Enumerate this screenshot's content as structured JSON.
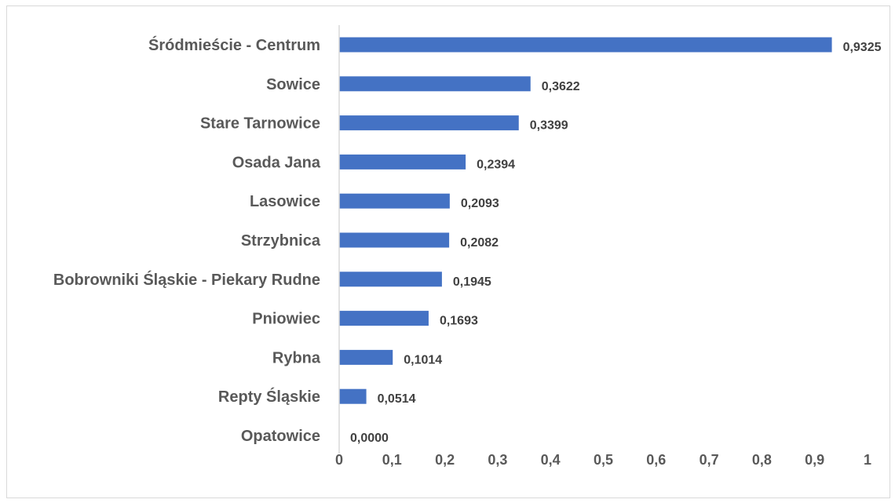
{
  "chart_data": {
    "type": "bar",
    "orientation": "horizontal",
    "categories": [
      "Śródmieście - Centrum",
      "Sowice",
      "Stare Tarnowice",
      "Osada Jana",
      "Lasowice",
      "Strzybnica",
      "Bobrowniki Śląskie - Piekary Rudne",
      "Pniowiec",
      "Rybna",
      "Repty Śląskie",
      "Opatowice"
    ],
    "values": [
      0.9325,
      0.3622,
      0.3399,
      0.2394,
      0.2093,
      0.2082,
      0.1945,
      0.1693,
      0.1014,
      0.0514,
      0.0
    ],
    "value_labels": [
      "0,9325",
      "0,3622",
      "0,3399",
      "0,2394",
      "0,2093",
      "0,2082",
      "0,1945",
      "0,1693",
      "0,1014",
      "0,0514",
      "0,0000"
    ],
    "xlim": [
      0,
      1
    ],
    "xticks": [
      0,
      0.1,
      0.2,
      0.3,
      0.4,
      0.5,
      0.6,
      0.7,
      0.8,
      0.9,
      1
    ],
    "xtick_labels": [
      "0",
      "0,1",
      "0,2",
      "0,3",
      "0,4",
      "0,5",
      "0,6",
      "0,7",
      "0,8",
      "0,9",
      "1"
    ],
    "title": "",
    "xlabel": "",
    "ylabel": "",
    "grid": false,
    "bar_color": "#4472c4",
    "axis_color": "#d9d9d9"
  }
}
